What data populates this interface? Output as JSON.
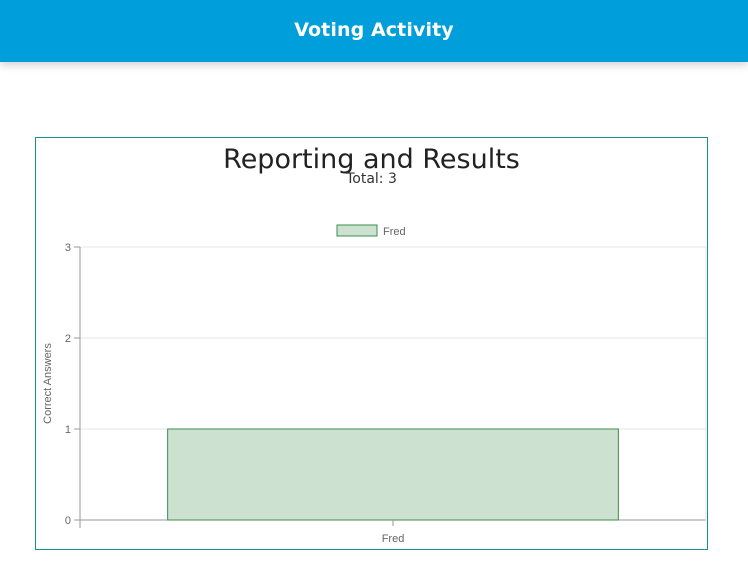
{
  "header": {
    "title": "Voting Activity"
  },
  "report": {
    "title": "Reporting and Results",
    "total_text": "Total: 3"
  },
  "colors": {
    "header_bg": "#009fdb",
    "panel_border": "#1b8e8e",
    "bar_fill": "#cce1d0",
    "bar_stroke": "#3e8e4c"
  },
  "chart_data": {
    "type": "bar",
    "categories": [
      "Fred"
    ],
    "series": [
      {
        "name": "Fred",
        "values": [
          1
        ]
      }
    ],
    "xlabel": "",
    "ylabel": "Correct Answers",
    "ylim": [
      0,
      3
    ],
    "yticks": [
      "0",
      "1",
      "2",
      "3"
    ],
    "grid": true,
    "legend": "top-center"
  }
}
